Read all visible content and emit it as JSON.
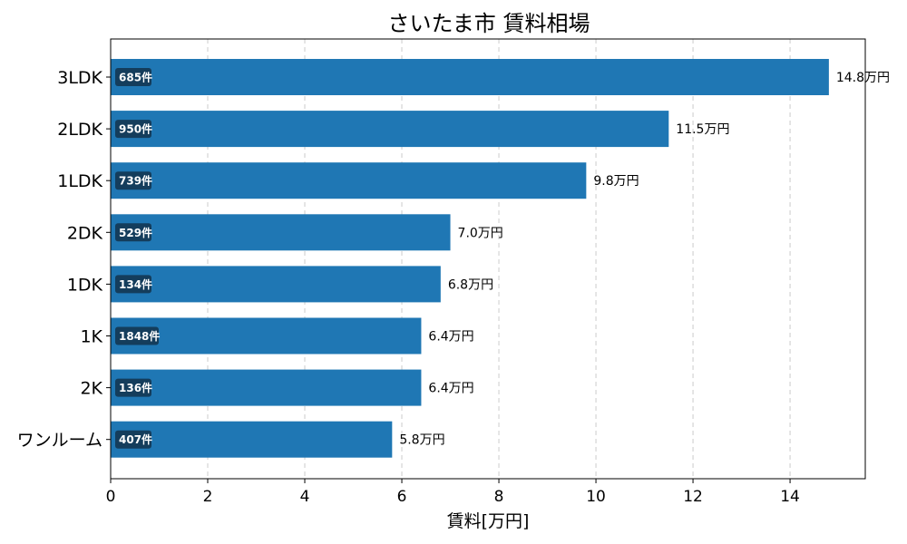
{
  "chart_data": {
    "type": "bar",
    "orientation": "horizontal",
    "title": "さいたま市 賃料相場",
    "xlabel": "賃料[万円]",
    "ylabel": "",
    "categories": [
      "3LDK",
      "2LDK",
      "1LDK",
      "2DK",
      "1DK",
      "1K",
      "2K",
      "ワンルーム"
    ],
    "values": [
      14.8,
      11.5,
      9.8,
      7.0,
      6.8,
      6.4,
      6.4,
      5.8
    ],
    "value_labels": [
      "14.8万円",
      "11.5万円",
      "9.8万円",
      "7.0万円",
      "6.8万円",
      "6.4万円",
      "6.4万円",
      "5.8万円"
    ],
    "count_labels": [
      "685件",
      "950件",
      "739件",
      "529件",
      "134件",
      "1848件",
      "136件",
      "407件"
    ],
    "xlim": [
      0,
      15.55
    ],
    "xticks": [
      0,
      2,
      4,
      6,
      8,
      10,
      12,
      14
    ],
    "grid": "x-dashed",
    "colors": {
      "bar": "#1f77b4",
      "count_badge": "#143d5c",
      "grid": "#cccccc"
    }
  }
}
